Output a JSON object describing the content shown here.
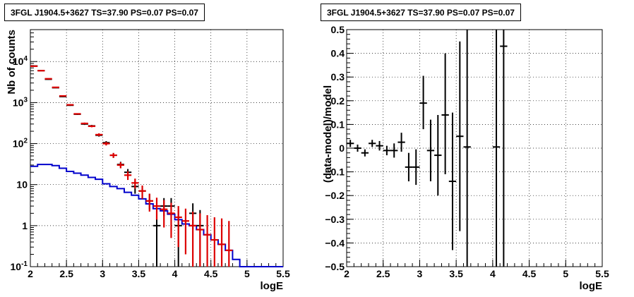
{
  "panels": {
    "left": {
      "title": "3FGL J1904.5+3627 TS=37.90 PS=0.07 PS=0.07"
    },
    "right": {
      "title": "3FGL J1904.5+3627 TS=37.90 PS=0.07 PS=0.07"
    }
  },
  "colors": {
    "data": "#000000",
    "model_total": "#dd0000",
    "model_source": "#0000cc",
    "grid": "#000000"
  },
  "chart_data": [
    {
      "type": "line",
      "xlabel": "logE",
      "ylabel": "Nb of counts",
      "xlim": [
        2,
        5.5
      ],
      "ylim": [
        0.1,
        60000
      ],
      "yscale": "log",
      "grid": true,
      "xticks": [
        "2",
        "2.5",
        "3",
        "3.5",
        "4",
        "4.5",
        "5",
        "5.5"
      ],
      "yticks": [
        "10^-1",
        "1",
        "10",
        "10^2",
        "10^3",
        "10^4"
      ],
      "bin_width": 0.1,
      "series": [
        {
          "role": "data",
          "points": [
            {
              "x": 2.05,
              "y": 7800,
              "lo": 7650,
              "hi": 7950
            },
            {
              "x": 2.15,
              "y": 6000,
              "lo": 5880,
              "hi": 6120
            },
            {
              "x": 2.25,
              "y": 3700,
              "lo": 3600,
              "hi": 3800
            },
            {
              "x": 2.35,
              "y": 2300,
              "lo": 2250,
              "hi": 2350
            },
            {
              "x": 2.45,
              "y": 1400,
              "lo": 1360,
              "hi": 1440
            },
            {
              "x": 2.55,
              "y": 860,
              "lo": 830,
              "hi": 890
            },
            {
              "x": 2.65,
              "y": 520,
              "lo": 500,
              "hi": 540
            },
            {
              "x": 2.75,
              "y": 300,
              "lo": 285,
              "hi": 315
            },
            {
              "x": 2.85,
              "y": 270,
              "lo": 255,
              "hi": 285
            },
            {
              "x": 2.95,
              "y": 160,
              "lo": 148,
              "hi": 172
            },
            {
              "x": 3.05,
              "y": 105,
              "lo": 95,
              "hi": 115
            },
            {
              "x": 3.15,
              "y": 52,
              "lo": 45,
              "hi": 59
            },
            {
              "x": 3.25,
              "y": 31,
              "lo": 26,
              "hi": 36
            },
            {
              "x": 3.35,
              "y": 20,
              "lo": 16,
              "hi": 24
            },
            {
              "x": 3.45,
              "y": 9,
              "lo": 6,
              "hi": 12
            },
            {
              "x": 3.55,
              "y": 7,
              "lo": 4.5,
              "hi": 9.5
            },
            {
              "x": 3.65,
              "y": 4,
              "lo": 2.5,
              "hi": 6
            },
            {
              "x": 3.75,
              "y": 1,
              "lo": 0.1,
              "hi": 2.4
            },
            {
              "x": 3.85,
              "y": 3,
              "lo": 1.7,
              "hi": 4.7
            },
            {
              "x": 3.95,
              "y": 3,
              "lo": 1.7,
              "hi": 4.7
            },
            {
              "x": 4.05,
              "y": 1,
              "lo": 0.1,
              "hi": 2.4
            },
            {
              "x": 4.25,
              "y": 2,
              "lo": 0.8,
              "hi": 3.5
            },
            {
              "x": 4.35,
              "y": 1,
              "lo": 0.1,
              "hi": 2.4
            }
          ]
        },
        {
          "role": "model_total",
          "points": [
            {
              "x": 2.05,
              "y": 7700,
              "lo": 7550,
              "hi": 7850
            },
            {
              "x": 2.15,
              "y": 6000,
              "lo": 5880,
              "hi": 6120
            },
            {
              "x": 2.25,
              "y": 3800,
              "lo": 3700,
              "hi": 3900
            },
            {
              "x": 2.35,
              "y": 2350,
              "lo": 2300,
              "hi": 2400
            },
            {
              "x": 2.45,
              "y": 1450,
              "lo": 1410,
              "hi": 1490
            },
            {
              "x": 2.55,
              "y": 880,
              "lo": 850,
              "hi": 910
            },
            {
              "x": 2.65,
              "y": 530,
              "lo": 510,
              "hi": 550
            },
            {
              "x": 2.75,
              "y": 310,
              "lo": 295,
              "hi": 325
            },
            {
              "x": 2.85,
              "y": 265,
              "lo": 250,
              "hi": 280
            },
            {
              "x": 2.95,
              "y": 165,
              "lo": 152,
              "hi": 178
            },
            {
              "x": 3.05,
              "y": 100,
              "lo": 90,
              "hi": 110
            },
            {
              "x": 3.15,
              "y": 52,
              "lo": 45,
              "hi": 59
            },
            {
              "x": 3.25,
              "y": 30,
              "lo": 25,
              "hi": 35
            },
            {
              "x": 3.35,
              "y": 17,
              "lo": 13,
              "hi": 21
            },
            {
              "x": 3.45,
              "y": 11,
              "lo": 8,
              "hi": 14
            },
            {
              "x": 3.55,
              "y": 7,
              "lo": 4.5,
              "hi": 9.5
            },
            {
              "x": 3.65,
              "y": 4,
              "lo": 2.2,
              "hi": 6
            },
            {
              "x": 3.75,
              "y": 3,
              "lo": 1.4,
              "hi": 4.8
            },
            {
              "x": 3.85,
              "y": 2.5,
              "lo": 0.9,
              "hi": 4.2
            },
            {
              "x": 3.95,
              "y": 2,
              "lo": 0.5,
              "hi": 3.6
            },
            {
              "x": 4.05,
              "y": 1.6,
              "lo": 0.3,
              "hi": 3
            },
            {
              "x": 4.15,
              "y": 1.3,
              "lo": 0.2,
              "hi": 2.6
            },
            {
              "x": 4.25,
              "y": 1,
              "lo": 0.1,
              "hi": 2.2
            },
            {
              "x": 4.35,
              "y": 0.8,
              "lo": 0.1,
              "hi": 2
            },
            {
              "x": 4.45,
              "y": 0.6,
              "lo": 0.1,
              "hi": 1.8
            },
            {
              "x": 4.55,
              "y": 0.45,
              "lo": 0.1,
              "hi": 1.6
            },
            {
              "x": 4.65,
              "y": 0.35,
              "lo": 0.1,
              "hi": 1.5
            },
            {
              "x": 4.75,
              "y": 0.25,
              "lo": 0.1,
              "hi": 1.3
            }
          ]
        },
        {
          "role": "model_source",
          "x": [
            2.05,
            2.15,
            2.25,
            2.35,
            2.45,
            2.55,
            2.65,
            2.75,
            2.85,
            2.95,
            3.05,
            3.15,
            3.25,
            3.35,
            3.45,
            3.55,
            3.65,
            3.75,
            3.85,
            3.95,
            4.05,
            4.15,
            4.25,
            4.35,
            4.45,
            4.55,
            4.65,
            4.75,
            4.85,
            4.95,
            5.05,
            5.15,
            5.25,
            5.35,
            5.45
          ],
          "y": [
            28,
            31,
            31,
            29,
            25,
            21,
            19,
            17,
            15,
            13.5,
            10.5,
            9,
            8,
            6.5,
            5.5,
            4.5,
            3.4,
            2.6,
            2.3,
            1.9,
            1.4,
            1.1,
            1,
            0.8,
            0.6,
            0.45,
            0.35,
            0.25,
            0.15,
            0.1,
            0.1,
            0.1,
            0.1,
            0.1,
            0.1
          ]
        }
      ]
    },
    {
      "type": "scatter",
      "xlabel": "logE",
      "ylabel": "(data-model)/model",
      "xlim": [
        2,
        5.5
      ],
      "ylim": [
        -0.5,
        0.5
      ],
      "grid": true,
      "xticks": [
        "2",
        "2.5",
        "3",
        "3.5",
        "4",
        "4.5",
        "5",
        "5.5"
      ],
      "yticks": [
        "−0.5",
        "−0.4",
        "−0.3",
        "−0.2",
        "−0.1",
        "0",
        "0.1",
        "0.2",
        "0.3",
        "0.4",
        "0.5"
      ],
      "bin_width": 0.1,
      "points": [
        {
          "x": 2.05,
          "y": 0.02,
          "lo": 0.005,
          "hi": 0.035
        },
        {
          "x": 2.15,
          "y": 0,
          "lo": -0.015,
          "hi": 0.015
        },
        {
          "x": 2.25,
          "y": -0.02,
          "lo": -0.035,
          "hi": -0.005
        },
        {
          "x": 2.35,
          "y": 0.02,
          "lo": 0.005,
          "hi": 0.035
        },
        {
          "x": 2.45,
          "y": 0.01,
          "lo": -0.01,
          "hi": 0.03
        },
        {
          "x": 2.55,
          "y": -0.01,
          "lo": -0.03,
          "hi": 0.01
        },
        {
          "x": 2.65,
          "y": -0.01,
          "lo": -0.04,
          "hi": 0.02
        },
        {
          "x": 2.75,
          "y": 0.025,
          "lo": -0.015,
          "hi": 0.065
        },
        {
          "x": 2.85,
          "y": -0.08,
          "lo": -0.14,
          "hi": -0.02
        },
        {
          "x": 2.95,
          "y": -0.08,
          "lo": -0.155,
          "hi": -0.005
        },
        {
          "x": 3.05,
          "y": 0.19,
          "lo": 0.08,
          "hi": 0.305
        },
        {
          "x": 3.15,
          "y": -0.01,
          "lo": -0.14,
          "hi": 0.12
        },
        {
          "x": 3.25,
          "y": -0.03,
          "lo": -0.2,
          "hi": 0.14
        },
        {
          "x": 3.35,
          "y": 0.14,
          "lo": -0.11,
          "hi": 0.4
        },
        {
          "x": 3.45,
          "y": -0.14,
          "lo": -0.43,
          "hi": 0.15
        },
        {
          "x": 3.55,
          "y": 0.05,
          "lo": -0.35,
          "hi": 0.45
        },
        {
          "x": 3.65,
          "y": 0.005,
          "lo": -0.5,
          "hi": 0.5
        },
        {
          "x": 4.05,
          "y": 0.005,
          "lo": -0.5,
          "hi": 0.5
        },
        {
          "x": 4.15,
          "y": 0.43,
          "lo": -0.5,
          "hi": 0.5
        }
      ]
    }
  ]
}
